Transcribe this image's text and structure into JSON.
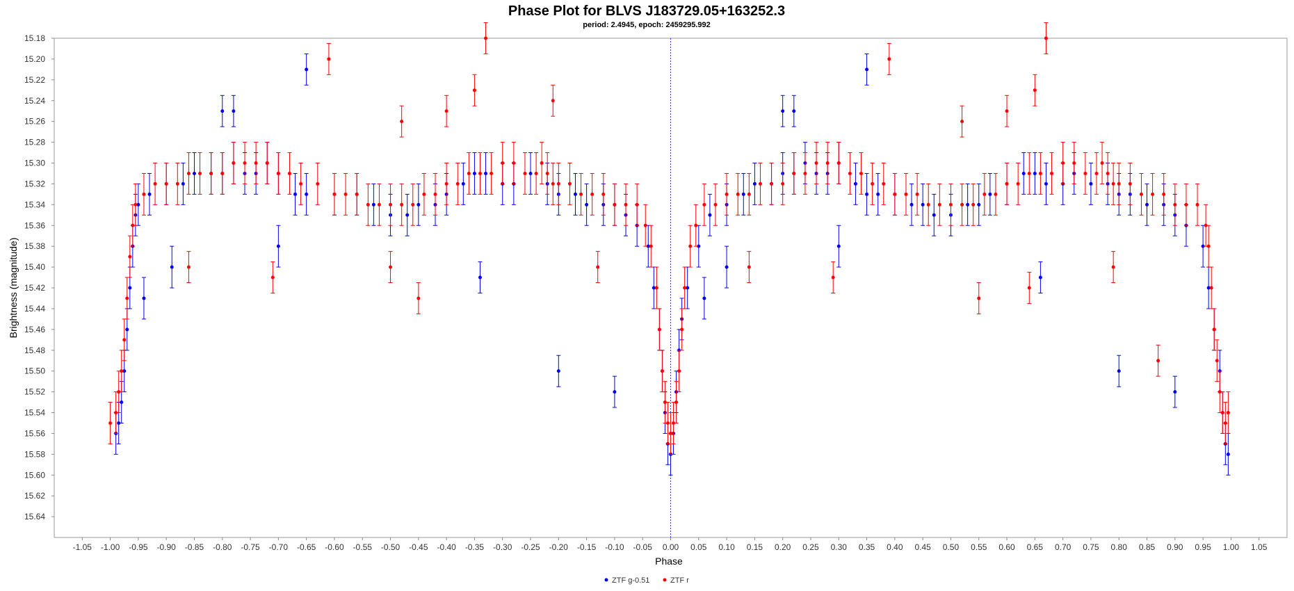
{
  "chart_data": {
    "type": "scatter",
    "title": "Phase Plot for BLVS J183729.05+163252.3",
    "subtitle": "period: 2.4945, epoch: 2459295.992",
    "xlabel": "Phase",
    "ylabel": "Brightness (magnitude)",
    "xlim": [
      -1.1,
      1.1
    ],
    "ylim": [
      15.18,
      15.66
    ],
    "y_inverted": true,
    "x_ticks": [
      "-1.05",
      "-1.00",
      "-0.95",
      "-0.90",
      "-0.85",
      "-0.80",
      "-0.75",
      "-0.70",
      "-0.65",
      "-0.60",
      "-0.55",
      "-0.50",
      "-0.45",
      "-0.40",
      "-0.35",
      "-0.30",
      "-0.25",
      "-0.20",
      "-0.15",
      "-0.10",
      "-0.05",
      "0.00",
      "0.05",
      "0.10",
      "0.15",
      "0.20",
      "0.25",
      "0.30",
      "0.35",
      "0.40",
      "0.45",
      "0.50",
      "0.55",
      "0.60",
      "0.65",
      "0.70",
      "0.75",
      "0.80",
      "0.85",
      "0.90",
      "0.95",
      "1.00",
      "1.05"
    ],
    "y_ticks": [
      "15.18",
      "15.20",
      "15.22",
      "15.24",
      "15.26",
      "15.28",
      "15.30",
      "15.32",
      "15.34",
      "15.36",
      "15.38",
      "15.40",
      "15.42",
      "15.44",
      "15.46",
      "15.48",
      "15.50",
      "15.52",
      "15.54",
      "15.56",
      "15.58",
      "15.60",
      "15.62",
      "15.64"
    ],
    "grid": false,
    "legend_position": "bottom-center",
    "reference_line_x": 0.0,
    "series": [
      {
        "name": "ZTF g-0.51",
        "color": "#0000ee",
        "phase": [
          -0.99,
          -0.985,
          -0.98,
          -0.975,
          -0.97,
          -0.965,
          -0.96,
          -0.955,
          -0.95,
          -0.93,
          -0.9,
          -0.87,
          -0.85,
          -0.82,
          -0.8,
          -0.78,
          -0.76,
          -0.74,
          -0.72,
          -0.7,
          -0.67,
          -0.65,
          -0.6,
          -0.56,
          -0.53,
          -0.5,
          -0.47,
          -0.45,
          -0.42,
          -0.4,
          -0.37,
          -0.35,
          -0.33,
          -0.3,
          -0.28,
          -0.25,
          -0.22,
          -0.2,
          -0.17,
          -0.15,
          -0.12,
          -0.1,
          -0.08,
          -0.06,
          -0.04,
          -0.03,
          -0.02,
          -0.015,
          -0.01,
          -0.005,
          0.0,
          0.005,
          0.01,
          0.015,
          0.02,
          0.03,
          0.05,
          0.07,
          0.1,
          0.13,
          0.15,
          0.18,
          0.2,
          0.22,
          0.24,
          0.26,
          0.28,
          0.3,
          0.33,
          0.35,
          0.37,
          0.4,
          0.43,
          0.45,
          0.47,
          0.5,
          0.53,
          0.55,
          0.57,
          0.6,
          0.63,
          0.65,
          0.67,
          0.7,
          0.72,
          0.75,
          0.78,
          0.8,
          0.82,
          0.85,
          0.88,
          0.9,
          0.92,
          0.95,
          0.96,
          0.97,
          0.98,
          0.985,
          0.99,
          0.995,
          -0.8,
          -0.78,
          -0.65,
          -0.34,
          -0.2,
          -0.1,
          0.2,
          0.22,
          0.35,
          0.66,
          0.8,
          0.9,
          -0.89,
          -0.7,
          -0.94,
          0.06,
          0.1,
          0.3
        ],
        "magnitude": [
          15.56,
          15.55,
          15.53,
          15.5,
          15.46,
          15.42,
          15.38,
          15.35,
          15.34,
          15.33,
          15.32,
          15.32,
          15.31,
          15.31,
          15.31,
          15.3,
          15.31,
          15.31,
          15.3,
          15.31,
          15.33,
          15.33,
          15.33,
          15.33,
          15.34,
          15.35,
          15.35,
          15.34,
          15.34,
          15.33,
          15.32,
          15.31,
          15.31,
          15.32,
          15.32,
          15.31,
          15.32,
          15.33,
          15.33,
          15.34,
          15.34,
          15.34,
          15.35,
          15.36,
          15.38,
          15.42,
          15.46,
          15.5,
          15.54,
          15.57,
          15.58,
          15.56,
          15.52,
          15.48,
          15.45,
          15.42,
          15.38,
          15.35,
          15.34,
          15.33,
          15.32,
          15.32,
          15.31,
          15.31,
          15.3,
          15.31,
          15.31,
          15.3,
          15.32,
          15.33,
          15.33,
          15.33,
          15.34,
          15.34,
          15.35,
          15.35,
          15.34,
          15.34,
          15.33,
          15.32,
          15.31,
          15.31,
          15.32,
          15.32,
          15.31,
          15.32,
          15.32,
          15.33,
          15.33,
          15.34,
          15.34,
          15.35,
          15.36,
          15.38,
          15.42,
          15.46,
          15.5,
          15.54,
          15.57,
          15.58,
          15.25,
          15.25,
          15.21,
          15.41,
          15.5,
          15.52,
          15.25,
          15.25,
          15.21,
          15.41,
          15.5,
          15.52,
          15.4,
          15.38,
          15.43,
          15.43,
          15.4,
          15.38
        ],
        "error": [
          0.02,
          0.02,
          0.02,
          0.02,
          0.02,
          0.02,
          0.02,
          0.02,
          0.02,
          0.02,
          0.02,
          0.02,
          0.02,
          0.02,
          0.02,
          0.02,
          0.02,
          0.02,
          0.02,
          0.02,
          0.02,
          0.02,
          0.02,
          0.02,
          0.02,
          0.02,
          0.02,
          0.02,
          0.02,
          0.02,
          0.02,
          0.02,
          0.02,
          0.02,
          0.02,
          0.02,
          0.02,
          0.02,
          0.02,
          0.02,
          0.02,
          0.02,
          0.02,
          0.02,
          0.02,
          0.02,
          0.02,
          0.02,
          0.02,
          0.02,
          0.02,
          0.02,
          0.02,
          0.02,
          0.02,
          0.02,
          0.02,
          0.02,
          0.02,
          0.02,
          0.02,
          0.02,
          0.02,
          0.02,
          0.02,
          0.02,
          0.02,
          0.02,
          0.02,
          0.02,
          0.02,
          0.02,
          0.02,
          0.02,
          0.02,
          0.02,
          0.02,
          0.02,
          0.02,
          0.02,
          0.02,
          0.02,
          0.02,
          0.02,
          0.02,
          0.02,
          0.02,
          0.02,
          0.02,
          0.02,
          0.02,
          0.02,
          0.02,
          0.02,
          0.02,
          0.02,
          0.02,
          0.02,
          0.02,
          0.02,
          0.015,
          0.015,
          0.015,
          0.015,
          0.015,
          0.015,
          0.015,
          0.015,
          0.015,
          0.015,
          0.015,
          0.015,
          0.02,
          0.02,
          0.02,
          0.02,
          0.02,
          0.02
        ]
      },
      {
        "name": "ZTF r",
        "color": "#ff0000",
        "phase": [
          -1.0,
          -0.99,
          -0.985,
          -0.98,
          -0.975,
          -0.97,
          -0.965,
          -0.96,
          -0.955,
          -0.94,
          -0.92,
          -0.9,
          -0.88,
          -0.86,
          -0.84,
          -0.82,
          -0.8,
          -0.78,
          -0.76,
          -0.74,
          -0.72,
          -0.7,
          -0.68,
          -0.66,
          -0.63,
          -0.6,
          -0.58,
          -0.56,
          -0.54,
          -0.52,
          -0.5,
          -0.48,
          -0.46,
          -0.44,
          -0.42,
          -0.4,
          -0.38,
          -0.36,
          -0.34,
          -0.32,
          -0.3,
          -0.28,
          -0.26,
          -0.24,
          -0.23,
          -0.22,
          -0.21,
          -0.2,
          -0.18,
          -0.16,
          -0.14,
          -0.12,
          -0.1,
          -0.08,
          -0.06,
          -0.045,
          -0.035,
          -0.025,
          -0.02,
          -0.015,
          -0.01,
          -0.005,
          0.0,
          0.005,
          0.01,
          0.015,
          0.02,
          0.025,
          0.035,
          0.045,
          0.06,
          0.08,
          0.1,
          0.12,
          0.14,
          0.16,
          0.18,
          0.2,
          0.22,
          0.24,
          0.26,
          0.28,
          0.3,
          0.32,
          0.34,
          0.36,
          0.38,
          0.4,
          0.42,
          0.44,
          0.46,
          0.48,
          0.5,
          0.52,
          0.54,
          0.56,
          0.58,
          0.6,
          0.62,
          0.64,
          0.66,
          0.68,
          0.7,
          0.72,
          0.74,
          0.76,
          0.77,
          0.78,
          0.79,
          0.8,
          0.82,
          0.84,
          0.86,
          0.88,
          0.9,
          0.92,
          0.94,
          0.955,
          0.96,
          0.965,
          0.97,
          0.975,
          0.98,
          0.985,
          0.99,
          0.995,
          -0.61,
          -0.33,
          -0.35,
          -0.4,
          -0.48,
          -0.21,
          -0.71,
          -0.13,
          -0.5,
          -0.45,
          -0.86,
          0.39,
          0.67,
          0.65,
          0.6,
          0.52,
          0.29,
          0.79,
          0.87,
          0.55,
          0.14,
          0.64
        ],
        "magnitude": [
          15.55,
          15.54,
          15.52,
          15.5,
          15.47,
          15.43,
          15.39,
          15.36,
          15.34,
          15.33,
          15.32,
          15.32,
          15.32,
          15.31,
          15.31,
          15.31,
          15.31,
          15.3,
          15.3,
          15.3,
          15.3,
          15.31,
          15.31,
          15.32,
          15.32,
          15.33,
          15.33,
          15.33,
          15.34,
          15.34,
          15.34,
          15.34,
          15.34,
          15.33,
          15.33,
          15.32,
          15.32,
          15.31,
          15.31,
          15.31,
          15.3,
          15.3,
          15.31,
          15.31,
          15.3,
          15.31,
          15.32,
          15.32,
          15.32,
          15.33,
          15.33,
          15.33,
          15.34,
          15.34,
          15.34,
          15.36,
          15.38,
          15.42,
          15.46,
          15.5,
          15.53,
          15.55,
          15.56,
          15.55,
          15.53,
          15.5,
          15.46,
          15.42,
          15.38,
          15.36,
          15.34,
          15.34,
          15.33,
          15.33,
          15.33,
          15.32,
          15.32,
          15.32,
          15.31,
          15.31,
          15.3,
          15.3,
          15.3,
          15.31,
          15.31,
          15.32,
          15.32,
          15.33,
          15.33,
          15.33,
          15.34,
          15.34,
          15.34,
          15.34,
          15.34,
          15.33,
          15.33,
          15.32,
          15.32,
          15.31,
          15.31,
          15.31,
          15.3,
          15.3,
          15.31,
          15.31,
          15.3,
          15.31,
          15.32,
          15.32,
          15.32,
          15.33,
          15.33,
          15.33,
          15.34,
          15.34,
          15.34,
          15.36,
          15.38,
          15.42,
          15.46,
          15.49,
          15.52,
          15.54,
          15.55,
          15.54,
          15.2,
          15.18,
          15.23,
          15.25,
          15.26,
          15.24,
          15.41,
          15.4,
          15.4,
          15.43,
          15.4,
          15.2,
          15.18,
          15.23,
          15.25,
          15.26,
          15.41,
          15.4,
          15.49,
          15.43,
          15.4,
          15.42
        ],
        "error": [
          0.02,
          0.02,
          0.02,
          0.02,
          0.02,
          0.02,
          0.02,
          0.02,
          0.02,
          0.02,
          0.02,
          0.02,
          0.02,
          0.02,
          0.02,
          0.02,
          0.02,
          0.02,
          0.02,
          0.02,
          0.02,
          0.02,
          0.02,
          0.02,
          0.02,
          0.02,
          0.02,
          0.02,
          0.02,
          0.02,
          0.02,
          0.02,
          0.02,
          0.02,
          0.02,
          0.02,
          0.02,
          0.02,
          0.02,
          0.02,
          0.02,
          0.02,
          0.02,
          0.02,
          0.02,
          0.02,
          0.02,
          0.02,
          0.02,
          0.02,
          0.02,
          0.02,
          0.02,
          0.02,
          0.02,
          0.02,
          0.02,
          0.02,
          0.02,
          0.02,
          0.02,
          0.02,
          0.02,
          0.02,
          0.02,
          0.02,
          0.02,
          0.02,
          0.02,
          0.02,
          0.02,
          0.02,
          0.02,
          0.02,
          0.02,
          0.02,
          0.02,
          0.02,
          0.02,
          0.02,
          0.02,
          0.02,
          0.02,
          0.02,
          0.02,
          0.02,
          0.02,
          0.02,
          0.02,
          0.02,
          0.02,
          0.02,
          0.02,
          0.02,
          0.02,
          0.02,
          0.02,
          0.02,
          0.02,
          0.02,
          0.02,
          0.02,
          0.02,
          0.02,
          0.02,
          0.02,
          0.02,
          0.02,
          0.02,
          0.02,
          0.02,
          0.02,
          0.02,
          0.02,
          0.02,
          0.02,
          0.02,
          0.02,
          0.02,
          0.02,
          0.02,
          0.02,
          0.02,
          0.02,
          0.02,
          0.02,
          0.015,
          0.015,
          0.015,
          0.015,
          0.015,
          0.015,
          0.015,
          0.015,
          0.015,
          0.015,
          0.015,
          0.015,
          0.015,
          0.015,
          0.015,
          0.015,
          0.015,
          0.015,
          0.015,
          0.015,
          0.015,
          0.015
        ]
      }
    ]
  }
}
